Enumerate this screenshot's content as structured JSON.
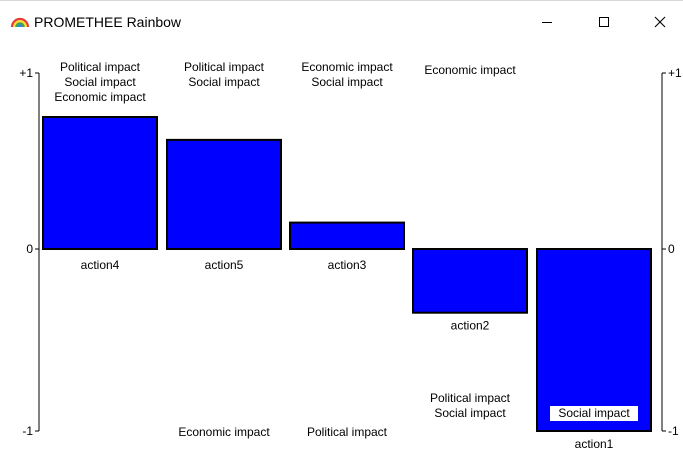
{
  "window": {
    "title": "PROMETHEE Rainbow",
    "minimize_icon": "minimize-icon",
    "maximize_icon": "maximize-icon",
    "close_icon": "close-icon",
    "app_icon": "rainbow-icon"
  },
  "chart_data": {
    "type": "bar",
    "title": "",
    "xlabel": "",
    "ylabel": "",
    "ylim": [
      -1,
      1
    ],
    "y_tick_labels_left": [
      "+1",
      "0",
      "-1"
    ],
    "y_tick_labels_right": [
      "+1",
      "0",
      "-1"
    ],
    "grid": false,
    "bar_color": "#0000ff",
    "categories": [
      "action4",
      "action5",
      "action3",
      "action2",
      "action1"
    ],
    "values": [
      0.75,
      0.62,
      0.15,
      -0.35,
      -1.0
    ],
    "bar_annotations": [
      {
        "action": "action4",
        "above": [
          "Political impact",
          "Social impact",
          "Economic impact"
        ],
        "below": []
      },
      {
        "action": "action5",
        "above": [
          "Political impact",
          "Social impact"
        ],
        "below": [
          "Economic impact"
        ]
      },
      {
        "action": "action3",
        "above": [
          "Economic impact",
          "Social impact"
        ],
        "below": [
          "Political impact"
        ]
      },
      {
        "action": "action2",
        "above": [
          "Economic impact"
        ],
        "below": [
          "Political impact",
          "Social impact"
        ]
      },
      {
        "action": "action1",
        "above": [],
        "below": [
          "Social impact"
        ]
      }
    ]
  }
}
